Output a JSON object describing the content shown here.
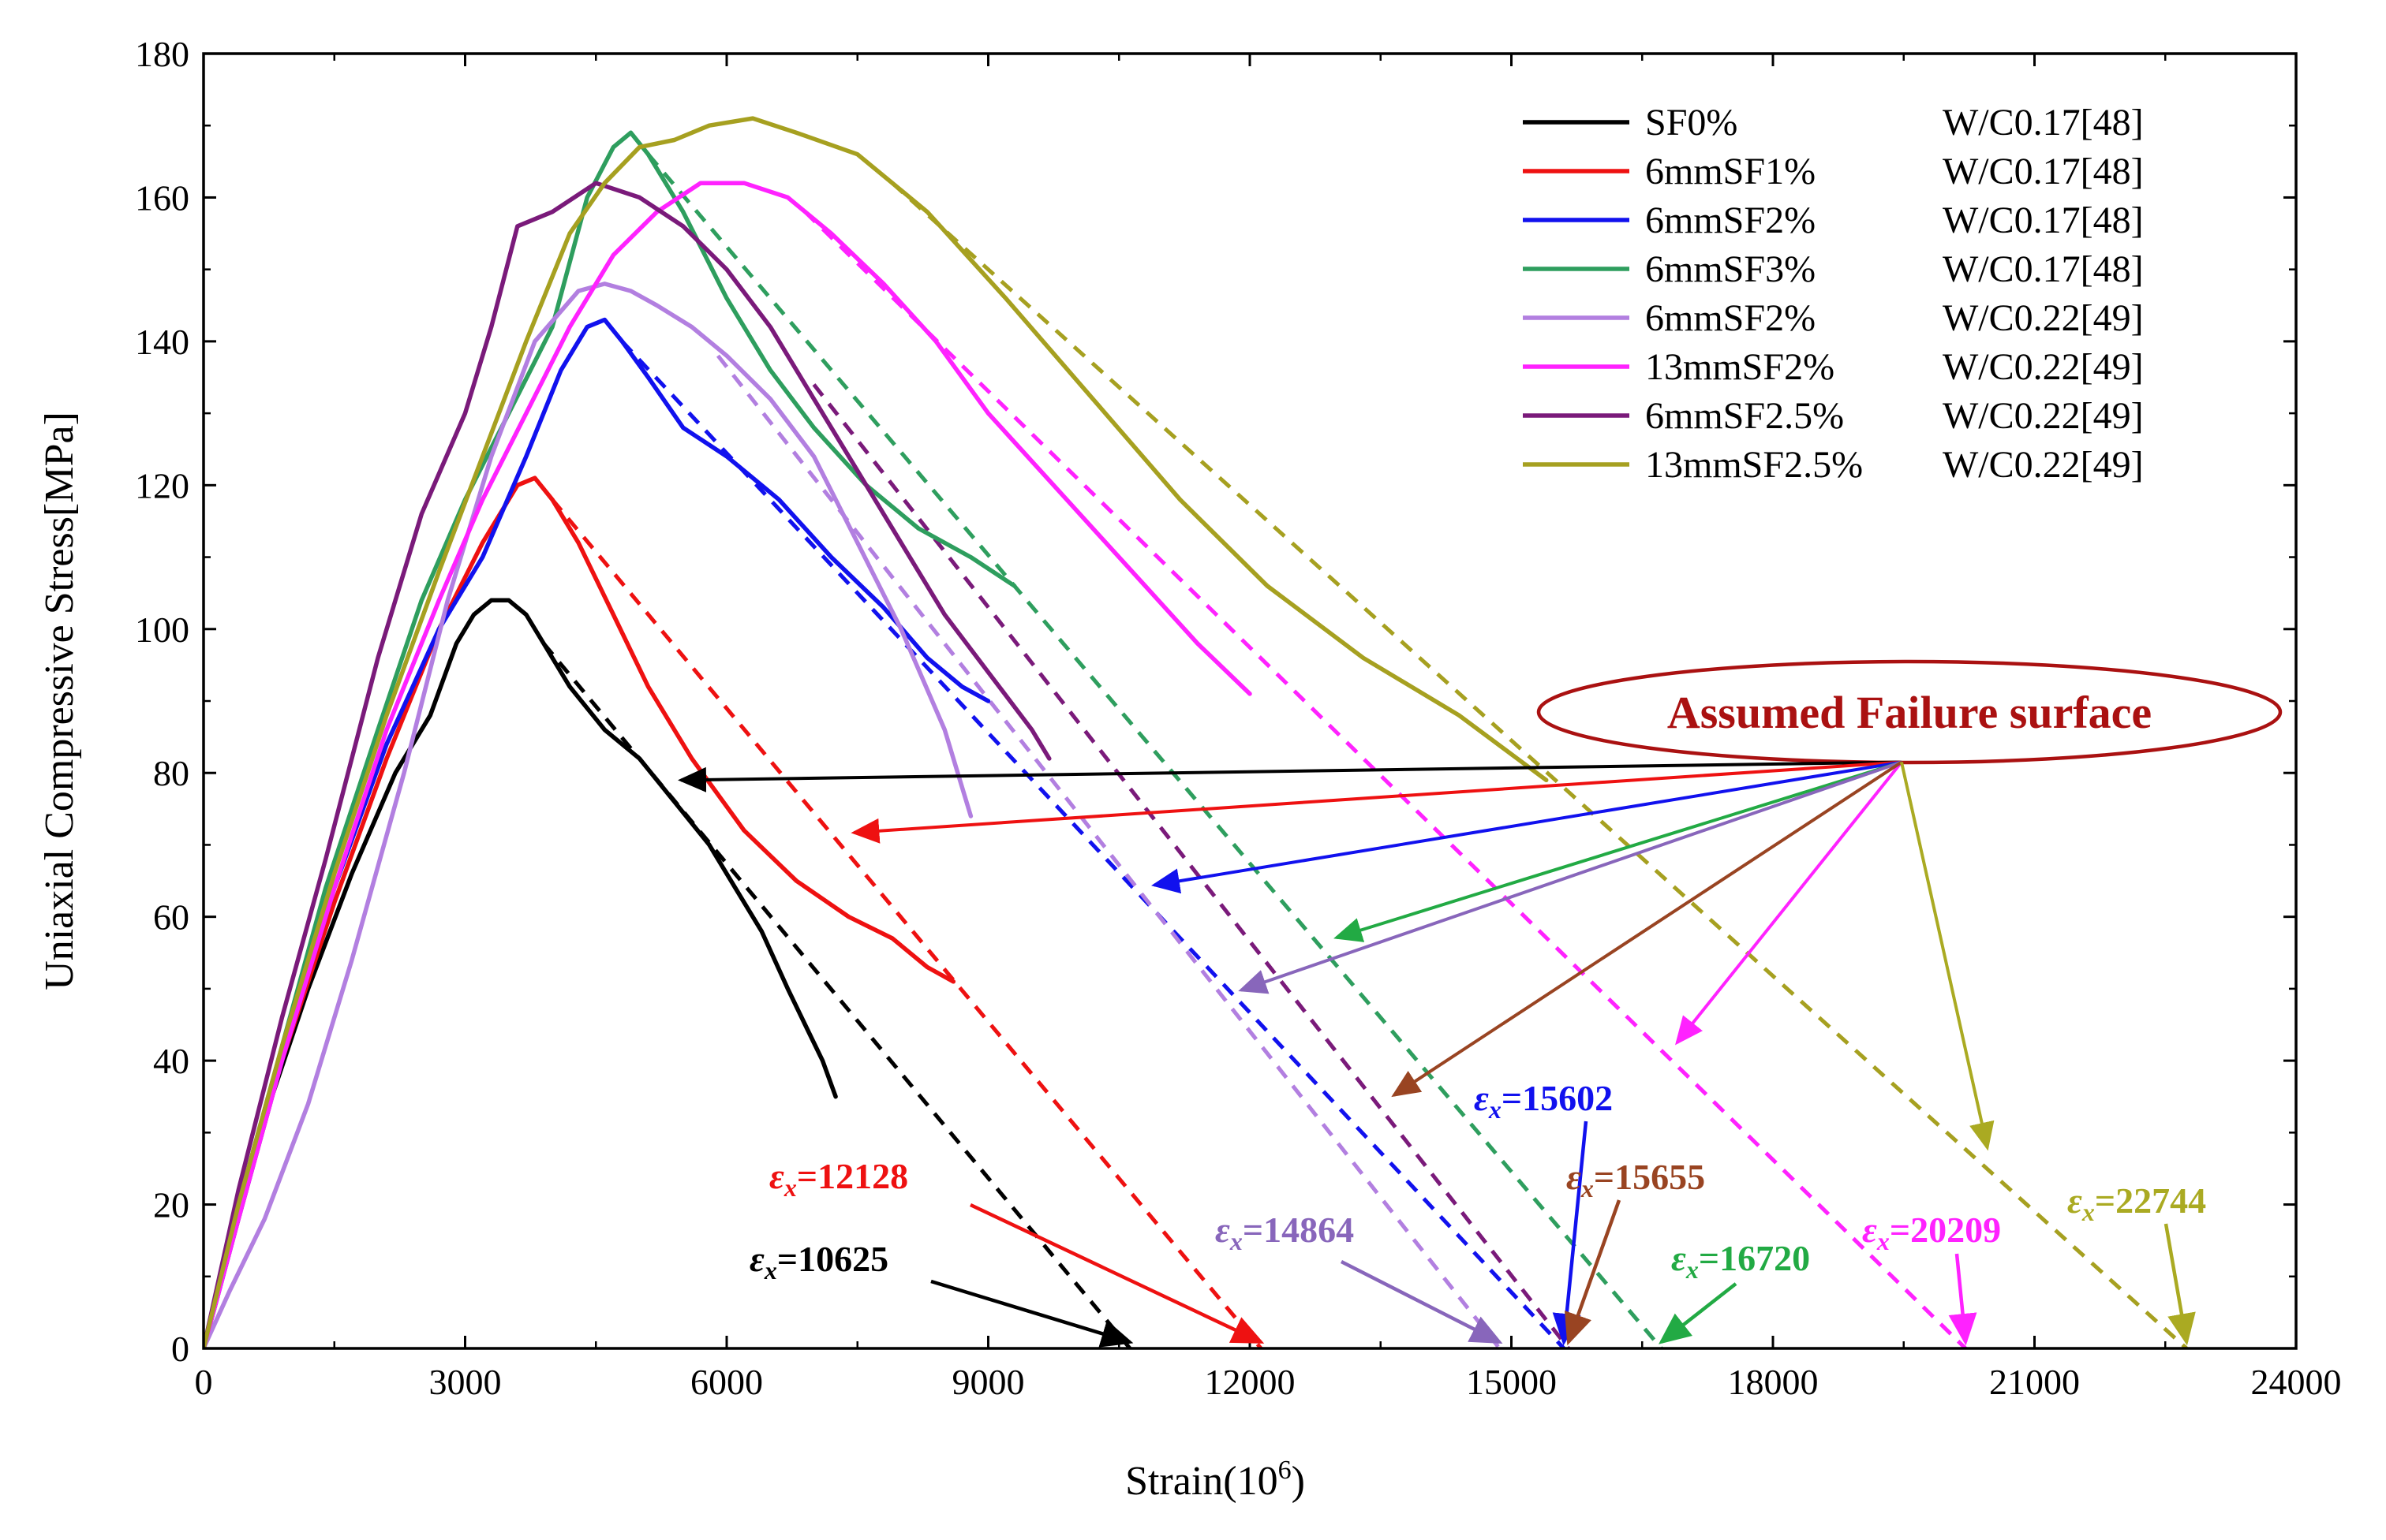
{
  "chart_data": {
    "type": "line",
    "title": "",
    "xlabel": "Strain(10",
    "xlabel_sup": "6",
    "xlabel_end": ")",
    "ylabel": "Uniaxial Compressive Stress[MPa]",
    "xlim": [
      0,
      24000
    ],
    "ylim": [
      0,
      180
    ],
    "xticks": [
      0,
      3000,
      6000,
      9000,
      12000,
      15000,
      18000,
      21000,
      24000
    ],
    "yticks": [
      0,
      20,
      40,
      60,
      80,
      100,
      120,
      140,
      160,
      180
    ],
    "legend_position": "top-right",
    "series": [
      {
        "name": "SF0%",
        "source": "W/C0.17[48]",
        "color": "#000000",
        "x": [
          0,
          300,
          700,
          1200,
          1700,
          2200,
          2600,
          2900,
          3100,
          3300,
          3500,
          3700,
          3900,
          4200,
          4600,
          5000,
          5400,
          5800,
          6100,
          6400,
          6700,
          6900,
          7100,
          7250
        ],
        "y": [
          0,
          14,
          32,
          50,
          66,
          80,
          88,
          98,
          102,
          104,
          104,
          102,
          98,
          92,
          86,
          82,
          76,
          70,
          64,
          58,
          50,
          45,
          40,
          35
        ],
        "fit_x": [
          3900,
          10625
        ],
        "fit_y": [
          98,
          0
        ],
        "failure_strain": 10625,
        "failure_label": "=10625",
        "ann_color": "#000000"
      },
      {
        "name": "6mmSF1%",
        "source": "W/C0.17[48]",
        "color": "#ee1111",
        "x": [
          0,
          400,
          900,
          1500,
          2100,
          2700,
          3200,
          3600,
          3800,
          4000,
          4300,
          4700,
          5100,
          5600,
          6200,
          6800,
          7400,
          7900,
          8300,
          8600
        ],
        "y": [
          0,
          18,
          40,
          62,
          82,
          100,
          112,
          120,
          121,
          118,
          112,
          102,
          92,
          82,
          72,
          65,
          60,
          57,
          53,
          51
        ],
        "fit_x": [
          4000,
          12128
        ],
        "fit_y": [
          118,
          0
        ],
        "failure_strain": 12128,
        "failure_label": "=12128",
        "ann_color": "#ee1111"
      },
      {
        "name": "6mmSF2%",
        "source": "W/C0.17[48]",
        "color": "#1111ee",
        "x": [
          0,
          400,
          900,
          1500,
          2100,
          2700,
          3200,
          3700,
          4100,
          4400,
          4600,
          4800,
          5100,
          5500,
          6000,
          6600,
          7200,
          7800,
          8300,
          8700,
          9000
        ],
        "y": [
          0,
          18,
          40,
          64,
          84,
          100,
          110,
          124,
          136,
          142,
          143,
          140,
          135,
          128,
          124,
          118,
          110,
          103,
          96,
          92,
          90
        ],
        "fit_x": [
          4800,
          15602
        ],
        "fit_y": [
          140,
          0
        ],
        "failure_strain": 15602,
        "failure_label": "=15602",
        "ann_color": "#1111ee"
      },
      {
        "name": "6mmSF3%",
        "source": "W/C0.17[48]",
        "color": "#2e9e5e",
        "x": [
          0,
          400,
          900,
          1400,
          2000,
          2500,
          3000,
          3500,
          4000,
          4400,
          4700,
          4900,
          5100,
          5500,
          6000,
          6500,
          7000,
          7600,
          8200,
          8800,
          9300
        ],
        "y": [
          0,
          20,
          42,
          64,
          86,
          104,
          118,
          130,
          142,
          160,
          167,
          169,
          166,
          158,
          146,
          136,
          128,
          120,
          114,
          110,
          106
        ],
        "fit_x": [
          5100,
          16720
        ],
        "fit_y": [
          166,
          0
        ],
        "failure_strain": 16720,
        "failure_label": "=16720",
        "ann_color": "#22aa44"
      },
      {
        "name": "6mmSF2%",
        "source": "W/C0.22[49]",
        "color": "#b27fe0",
        "x": [
          0,
          300,
          700,
          1200,
          1700,
          2300,
          2800,
          3300,
          3800,
          4300,
          4600,
          4900,
          5200,
          5600,
          6000,
          6500,
          7000,
          7500,
          8000,
          8500,
          8800
        ],
        "y": [
          0,
          8,
          18,
          34,
          54,
          80,
          104,
          124,
          140,
          147,
          148,
          147,
          145,
          142,
          138,
          132,
          124,
          112,
          100,
          86,
          74
        ],
        "fit_x": [
          5900,
          14864
        ],
        "fit_y": [
          138,
          0
        ],
        "failure_strain": 14864,
        "failure_label": "=14864",
        "ann_color": "#8866bb"
      },
      {
        "name": "13mmSF2%",
        "source": "W/C0.22[49]",
        "color": "#ff22ff",
        "x": [
          0,
          400,
          900,
          1500,
          2100,
          2700,
          3200,
          3700,
          4200,
          4700,
          5200,
          5700,
          6200,
          6700,
          7200,
          7800,
          8400,
          9000,
          9600,
          10200,
          10800,
          11400,
          12000
        ],
        "y": [
          0,
          18,
          40,
          64,
          86,
          104,
          118,
          130,
          142,
          152,
          158,
          162,
          162,
          160,
          155,
          148,
          140,
          130,
          122,
          114,
          106,
          98,
          91
        ],
        "fit_x": [
          6900,
          20209
        ],
        "fit_y": [
          158,
          0
        ],
        "failure_strain": 20209,
        "failure_label": "=20209",
        "ann_color": "#ff22ff"
      },
      {
        "name": "6mmSF2.5%",
        "source": "W/C0.22[49]",
        "color": "#7a1a7a",
        "x": [
          0,
          400,
          900,
          1400,
          2000,
          2500,
          3000,
          3300,
          3600,
          4000,
          4500,
          5000,
          5500,
          6000,
          6500,
          7000,
          7500,
          8000,
          8500,
          9000,
          9500,
          9700
        ],
        "y": [
          0,
          22,
          46,
          68,
          96,
          116,
          130,
          142,
          156,
          158,
          162,
          160,
          156,
          150,
          142,
          132,
          122,
          112,
          102,
          94,
          86,
          82
        ],
        "fit_x": [
          7000,
          15655
        ],
        "fit_y": [
          134,
          0
        ],
        "failure_strain": 15655,
        "failure_label": "=15655",
        "ann_color": "#994422"
      },
      {
        "name": "13mmSF2.5%",
        "source": "W/C0.22[49]",
        "color": "#a6a020",
        "x": [
          0,
          400,
          900,
          1500,
          2100,
          2700,
          3200,
          3700,
          4200,
          4600,
          5000,
          5400,
          5800,
          6300,
          6800,
          7500,
          8300,
          9200,
          10200,
          11200,
          12200,
          13300,
          14400,
          15400
        ],
        "y": [
          0,
          20,
          42,
          66,
          88,
          108,
          124,
          140,
          155,
          162,
          167,
          168,
          170,
          171,
          169,
          166,
          158,
          146,
          132,
          118,
          106,
          96,
          88,
          79
        ],
        "fit_x": [
          7900,
          22744
        ],
        "fit_y": [
          162,
          0
        ],
        "failure_strain": 22744,
        "failure_label": "=22744",
        "ann_color": "#aaaa22"
      }
    ],
    "failure_annotation": {
      "label": "Assumed Failure surface",
      "color": "#aa1111"
    },
    "epsilon_symbol": "ε",
    "epsilon_subscript": "x"
  }
}
